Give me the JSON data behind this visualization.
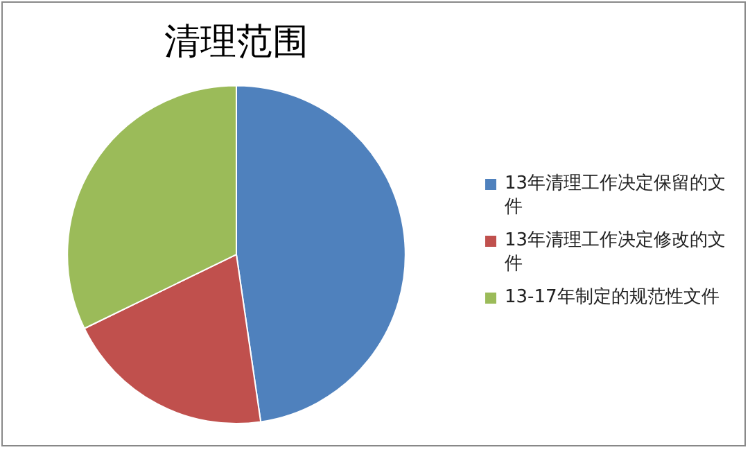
{
  "chart_data": {
    "type": "pie",
    "title": "清理范围",
    "categories": [
      "13年清理工作决定保留的文件",
      "13年清理工作决定修改的文件",
      "13-17年制定的规范性文件"
    ],
    "values": [
      47.7,
      20.1,
      32.2
    ],
    "colors": [
      "#4f81bd",
      "#c0504d",
      "#9bbb59"
    ],
    "legend": "right"
  }
}
